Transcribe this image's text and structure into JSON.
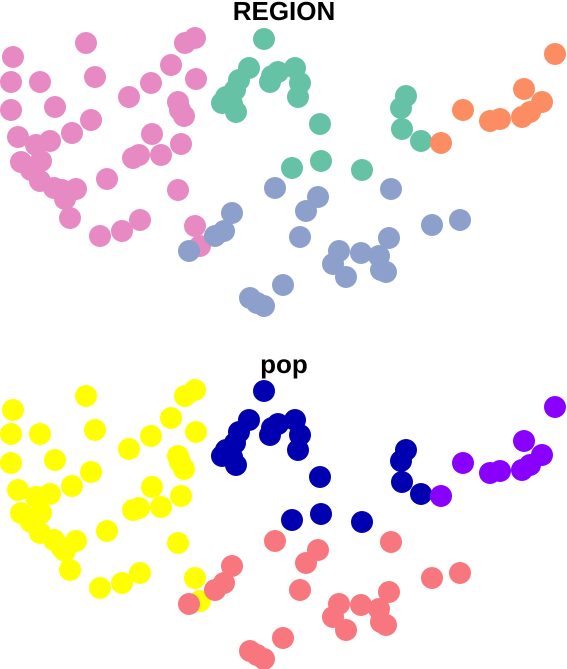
{
  "chart_data": [
    {
      "type": "scatter",
      "title": "REGION",
      "xlabel": "",
      "ylabel": "",
      "grid": false,
      "series": [
        {
          "color": "#e78ac3",
          "points": [
            [
              13,
              57
            ],
            [
              11,
              82
            ],
            [
              40,
              82
            ],
            [
              86,
              43
            ],
            [
              95,
              77
            ],
            [
              55,
              107
            ],
            [
              11,
              110
            ],
            [
              91,
              120
            ],
            [
              18,
              137
            ],
            [
              50,
              141
            ],
            [
              72,
              133
            ],
            [
              36,
              145
            ],
            [
              21,
              162
            ],
            [
              41,
              161
            ],
            [
              31,
              170
            ],
            [
              40,
              181
            ],
            [
              54,
              188
            ],
            [
              62,
              190
            ],
            [
              76,
              189
            ],
            [
              107,
              179
            ],
            [
              65,
              199
            ],
            [
              70,
              218
            ],
            [
              100,
              236
            ],
            [
              122,
              231
            ],
            [
              140,
              220
            ],
            [
              129,
              97
            ],
            [
              151,
              83
            ],
            [
              171,
              65
            ],
            [
              185,
              43
            ],
            [
              195,
              38
            ],
            [
              196,
              79
            ],
            [
              178,
              102
            ],
            [
              180,
              110
            ],
            [
              184,
              116
            ],
            [
              152,
              134
            ],
            [
              139,
              155
            ],
            [
              133,
              158
            ],
            [
              161,
              155
            ],
            [
              181,
              144
            ],
            [
              178,
              190
            ],
            [
              195,
              226
            ],
            [
              200,
              246
            ]
          ]
        },
        {
          "color": "#66c2a5",
          "points": [
            [
              264,
              39
            ],
            [
              249,
              68
            ],
            [
              239,
              80
            ],
            [
              235,
              90
            ],
            [
              226,
              97
            ],
            [
              222,
              103
            ],
            [
              232,
              104
            ],
            [
              236,
              112
            ],
            [
              272,
              76
            ],
            [
              278,
              72
            ],
            [
              270,
              82
            ],
            [
              295,
              68
            ],
            [
              300,
              83
            ],
            [
              298,
              97
            ],
            [
              320,
              124
            ],
            [
              292,
              168
            ],
            [
              321,
              161
            ],
            [
              362,
              170
            ],
            [
              406,
              96
            ],
            [
              401,
              108
            ],
            [
              402,
              129
            ],
            [
              421,
              141
            ]
          ]
        },
        {
          "color": "#fc8d62",
          "points": [
            [
              555,
              54
            ],
            [
              524,
              89
            ],
            [
              542,
              102
            ],
            [
              530,
              112
            ],
            [
              522,
              117
            ],
            [
              500,
              119
            ],
            [
              490,
              121
            ],
            [
              463,
              110
            ],
            [
              441,
              143
            ]
          ]
        },
        {
          "color": "#8da0cb",
          "points": [
            [
              232,
              213
            ],
            [
              224,
              231
            ],
            [
              215,
              236
            ],
            [
              189,
              251
            ],
            [
              275,
              188
            ],
            [
              306,
              211
            ],
            [
              318,
              197
            ],
            [
              300,
              237
            ],
            [
              391,
              189
            ],
            [
              432,
              225
            ],
            [
              460,
              220
            ],
            [
              339,
              251
            ],
            [
              361,
              253
            ],
            [
              333,
              264
            ],
            [
              346,
              277
            ],
            [
              389,
              238
            ],
            [
              379,
              256
            ],
            [
              381,
              270
            ],
            [
              386,
              272
            ],
            [
              250,
              298
            ],
            [
              257,
              303
            ],
            [
              264,
              306
            ],
            [
              283,
              285
            ]
          ]
        }
      ]
    },
    {
      "type": "scatter",
      "title": "pop",
      "xlabel": "",
      "ylabel": "",
      "grid": false,
      "series": [
        {
          "color": "#ffff00",
          "points": [
            [
              13,
              410
            ],
            [
              11,
              434
            ],
            [
              40,
              434
            ],
            [
              86,
              396
            ],
            [
              95,
              430
            ],
            [
              55,
              460
            ],
            [
              11,
              463
            ],
            [
              91,
              472
            ],
            [
              18,
              490
            ],
            [
              50,
              494
            ],
            [
              72,
              486
            ],
            [
              36,
              497
            ],
            [
              21,
              513
            ],
            [
              41,
              513
            ],
            [
              31,
              522
            ],
            [
              40,
              533
            ],
            [
              54,
              540
            ],
            [
              62,
              548
            ],
            [
              76,
              541
            ],
            [
              107,
              531
            ],
            [
              65,
              551
            ],
            [
              70,
              570
            ],
            [
              100,
              588
            ],
            [
              122,
              583
            ],
            [
              140,
              573
            ],
            [
              129,
              449
            ],
            [
              151,
              436
            ],
            [
              171,
              418
            ],
            [
              185,
              396
            ],
            [
              195,
              390
            ],
            [
              196,
              432
            ],
            [
              178,
              456
            ],
            [
              180,
              462
            ],
            [
              184,
              469
            ],
            [
              152,
              487
            ],
            [
              139,
              508
            ],
            [
              133,
              510
            ],
            [
              161,
              507
            ],
            [
              181,
              496
            ],
            [
              178,
              543
            ],
            [
              195,
              578
            ],
            [
              200,
              601
            ]
          ]
        },
        {
          "color": "#0000b0",
          "points": [
            [
              264,
              391
            ],
            [
              249,
              420
            ],
            [
              239,
              432
            ],
            [
              235,
              443
            ],
            [
              226,
              450
            ],
            [
              222,
              456
            ],
            [
              232,
              457
            ],
            [
              236,
              465
            ],
            [
              272,
              428
            ],
            [
              278,
              424
            ],
            [
              270,
              435
            ],
            [
              295,
              420
            ],
            [
              300,
              435
            ],
            [
              298,
              450
            ],
            [
              320,
              477
            ],
            [
              292,
              520
            ],
            [
              321,
              514
            ],
            [
              362,
              522
            ],
            [
              406,
              450
            ],
            [
              401,
              461
            ],
            [
              402,
              482
            ],
            [
              421,
              494
            ]
          ]
        },
        {
          "color": "#8a00ff",
          "points": [
            [
              555,
              407
            ],
            [
              524,
              441
            ],
            [
              542,
              455
            ],
            [
              530,
              465
            ],
            [
              522,
              470
            ],
            [
              500,
              471
            ],
            [
              490,
              473
            ],
            [
              463,
              463
            ],
            [
              441,
              496
            ]
          ]
        },
        {
          "color": "#f8767d",
          "points": [
            [
              232,
              566
            ],
            [
              224,
              583
            ],
            [
              215,
              590
            ],
            [
              189,
              604
            ],
            [
              275,
              541
            ],
            [
              306,
              563
            ],
            [
              318,
              550
            ],
            [
              300,
              590
            ],
            [
              391,
              542
            ],
            [
              432,
              578
            ],
            [
              460,
              573
            ],
            [
              339,
              604
            ],
            [
              361,
              605
            ],
            [
              333,
              617
            ],
            [
              346,
              630
            ],
            [
              389,
              592
            ],
            [
              379,
              609
            ],
            [
              381,
              622
            ],
            [
              386,
              625
            ],
            [
              250,
              651
            ],
            [
              257,
              655
            ],
            [
              264,
              659
            ],
            [
              283,
              638
            ]
          ]
        }
      ]
    }
  ]
}
